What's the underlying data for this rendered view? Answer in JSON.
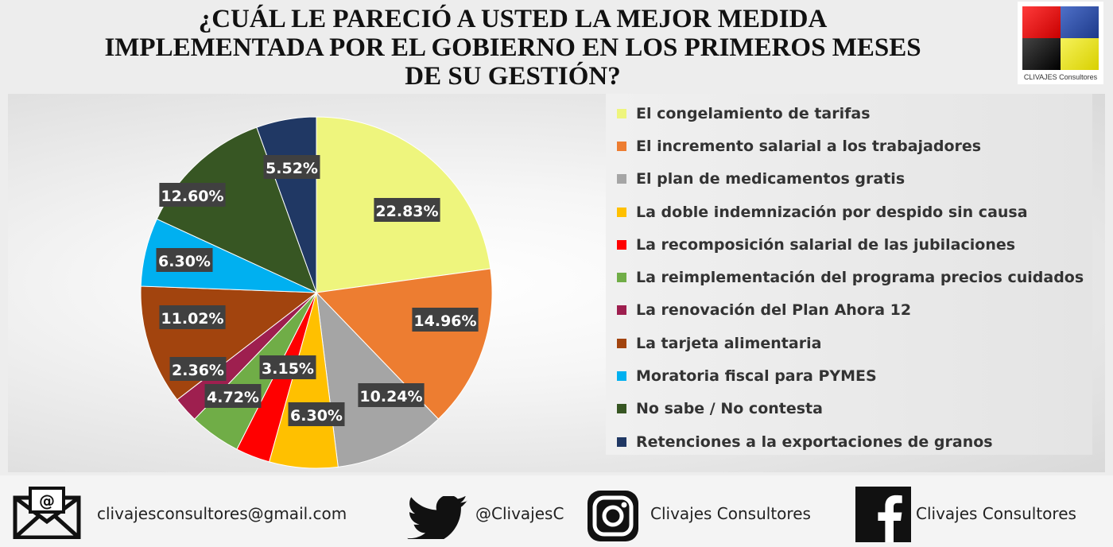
{
  "title": {
    "line1": "¿CUÁL LE PARECIÓ A USTED LA MEJOR MEDIDA",
    "line2": "IMPLEMENTADA POR EL GOBIERNO EN LOS PRIMEROS MESES",
    "line3": "DE SU GESTIÓN?"
  },
  "logo": {
    "text": "CLIVAJES Consultores"
  },
  "chart_data": {
    "type": "pie",
    "legend_position": "right",
    "slices": [
      {
        "label": "El congelamiento de tarifas",
        "value": 22.83,
        "value_label": "22.83%",
        "color": "#eef57d"
      },
      {
        "label": "El incremento salarial a los trabajadores",
        "value": 14.96,
        "value_label": "14.96%",
        "color": "#ed7d31"
      },
      {
        "label": "El plan de medicamentos gratis",
        "value": 10.24,
        "value_label": "10.24%",
        "color": "#a5a5a5"
      },
      {
        "label": "La doble indemnización por despido sin causa",
        "value": 6.3,
        "value_label": "6.30%",
        "color": "#ffc000"
      },
      {
        "label": "La recomposición salarial de las jubilaciones",
        "value": 3.15,
        "value_label": "3.15%",
        "color": "#ff0000"
      },
      {
        "label": "La reimplementación del programa precios cuidados",
        "value": 4.72,
        "value_label": "4.72%",
        "color": "#70ad47"
      },
      {
        "label": "La renovación del Plan Ahora 12",
        "value": 2.36,
        "value_label": "2.36%",
        "color": "#9e1f4f"
      },
      {
        "label": "La tarjeta alimentaria",
        "value": 11.02,
        "value_label": "11.02%",
        "color": "#a2440e"
      },
      {
        "label": "Moratoria fiscal para PYMES",
        "value": 6.3,
        "value_label": "6.30%",
        "color": "#00b0f0"
      },
      {
        "label": "No sabe / No contesta",
        "value": 12.6,
        "value_label": "12.60%",
        "color": "#375623"
      },
      {
        "label": "Retenciones a la exportaciones de granos",
        "value": 5.52,
        "value_label": "5.52%",
        "color": "#203864"
      }
    ]
  },
  "footer": {
    "email": "clivajesconsultores@gmail.com",
    "twitter": "@ClivajesC",
    "instagram": "Clivajes Consultores",
    "facebook": "Clivajes Consultores"
  }
}
